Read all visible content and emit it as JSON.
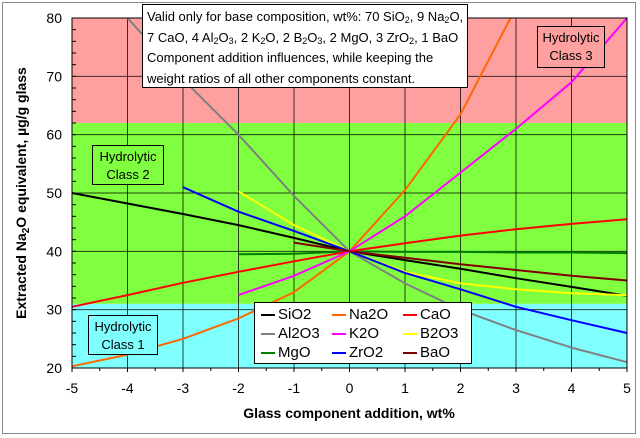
{
  "chart_data": {
    "type": "line",
    "title": "",
    "xlabel": "Glass component addition, wt%",
    "ylabel": "Extracted Na2O equivalent, µg/g glass",
    "xlim": [
      -5,
      5
    ],
    "ylim": [
      20,
      80
    ],
    "x_ticks": [
      "-5",
      "-4",
      "-3",
      "-2",
      "-1",
      "0",
      "1",
      "2",
      "3",
      "4",
      "5"
    ],
    "y_ticks": [
      "20",
      "30",
      "40",
      "50",
      "60",
      "70",
      "80"
    ],
    "grid": true,
    "legend_position": "lower center",
    "bands": [
      {
        "label": "Hydrolytic Class 1",
        "y_from": 20,
        "y_to": 31,
        "color": "#80ffff"
      },
      {
        "label": "Hydrolytic Class 2",
        "y_from": 31,
        "y_to": 62,
        "color": "#80ff40"
      },
      {
        "label": "Hydrolytic Class 3",
        "y_from": 62,
        "y_to": 80,
        "color": "#ffa0a0"
      }
    ],
    "series": [
      {
        "name": "SiO2",
        "color": "#000000",
        "x": [
          -5,
          -4,
          -3,
          -2,
          -1,
          0,
          1,
          2,
          3,
          4,
          5
        ],
        "values": [
          50.0,
          48.2,
          46.4,
          44.5,
          42.3,
          40.0,
          38.5,
          37.0,
          35.4,
          33.9,
          32.4
        ]
      },
      {
        "name": "Al2O3",
        "color": "#808080",
        "x": [
          -4,
          -3,
          -2,
          -1,
          0,
          1,
          2,
          3,
          4,
          5
        ],
        "values": [
          80.0,
          69.5,
          60.0,
          49.5,
          40.0,
          34.5,
          30.0,
          26.5,
          23.5,
          21.0
        ]
      },
      {
        "name": "MgO",
        "color": "#008000",
        "x": [
          -2,
          -1,
          0,
          1,
          2,
          3,
          4,
          5
        ],
        "values": [
          39.5,
          39.6,
          40.0,
          39.9,
          39.9,
          39.8,
          39.8,
          39.7
        ]
      },
      {
        "name": "Na2O",
        "color": "#ff6600",
        "x": [
          -5,
          -4,
          -3,
          -2,
          -1,
          0,
          1,
          2,
          2.9
        ],
        "values": [
          20.3,
          22.3,
          25.0,
          28.5,
          33.0,
          40.0,
          50.5,
          63.5,
          80.0
        ]
      },
      {
        "name": "K2O",
        "color": "#ff00ff",
        "x": [
          -2,
          -1,
          0,
          1,
          2,
          3,
          4,
          5
        ],
        "values": [
          32.5,
          35.8,
          40.0,
          46.0,
          53.5,
          61.0,
          69.0,
          80.0
        ]
      },
      {
        "name": "ZrO2",
        "color": "#0000ff",
        "x": [
          -3,
          -2,
          -1,
          0,
          1,
          2,
          3,
          4,
          5
        ],
        "values": [
          51.0,
          46.8,
          43.5,
          40.0,
          36.3,
          33.5,
          30.5,
          28.2,
          26.0
        ]
      },
      {
        "name": "CaO",
        "color": "#ff0000",
        "x": [
          -5,
          -4,
          -3,
          -2,
          -1,
          0,
          1,
          2,
          3,
          4,
          5
        ],
        "values": [
          30.5,
          32.5,
          34.6,
          36.5,
          38.3,
          40.0,
          41.4,
          42.7,
          43.8,
          44.7,
          45.5
        ]
      },
      {
        "name": "B2O3",
        "color": "#ffff00",
        "x": [
          -2,
          -1,
          0,
          1,
          2,
          3,
          4,
          5
        ],
        "values": [
          50.3,
          44.5,
          40.0,
          36.5,
          34.5,
          33.5,
          32.8,
          32.5
        ]
      },
      {
        "name": "BaO",
        "color": "#800000",
        "x": [
          -1,
          0,
          1,
          2,
          3,
          4,
          5
        ],
        "values": [
          41.5,
          40.0,
          38.9,
          37.8,
          36.8,
          35.8,
          35.0
        ]
      }
    ],
    "annotations": [
      "Valid only for base composition, wt%: 70 SiO2, 9 Na2O, 7 CaO, 4 Al2O3, 2 K2O, 2 B2O3, 2 MgO, 3 ZrO2, 1 BaO",
      "Component addition influences, while keeping the weight ratios of all other components constant."
    ]
  },
  "note": {
    "line1_a": "Valid only for base composition, wt%: 70 SiO",
    "line1_b": ", 9 Na",
    "line1_c": "O,",
    "line2_a": "7 CaO, 4 Al",
    "line2_b": "O",
    "line2_c": ", 2 K",
    "line2_d": "O, 2 B",
    "line2_e": "O",
    "line2_f": ", 2 MgO, 3 ZrO",
    "line2_g": ", 1 BaO",
    "line3": "Component addition influences, while keeping the",
    "line4": "weight ratios of all other components constant.",
    "sub2": "2",
    "sub3": "3"
  },
  "class_labels": {
    "c1_l1": "Hydrolytic",
    "c1_l2": "Class 1",
    "c2_l1": "Hydrolytic",
    "c2_l2": "Class 2",
    "c3_l1": "Hydrolytic",
    "c3_l2": "Class 3"
  },
  "axis": {
    "xlabel": "Glass component addition, wt%",
    "ylabel_a": "Extracted Na",
    "ylabel_sub": "2",
    "ylabel_b": "O equivalent, µg/g glass"
  },
  "legend": [
    {
      "label": "SiO2",
      "color": "#000000"
    },
    {
      "label": "Na2O",
      "color": "#ff6600"
    },
    {
      "label": "CaO",
      "color": "#ff0000"
    },
    {
      "label": "Al2O3",
      "color": "#808080"
    },
    {
      "label": "K2O",
      "color": "#ff00ff"
    },
    {
      "label": "B2O3",
      "color": "#ffff00"
    },
    {
      "label": "MgO",
      "color": "#008000"
    },
    {
      "label": "ZrO2",
      "color": "#0000ff"
    },
    {
      "label": "BaO",
      "color": "#800000"
    }
  ]
}
